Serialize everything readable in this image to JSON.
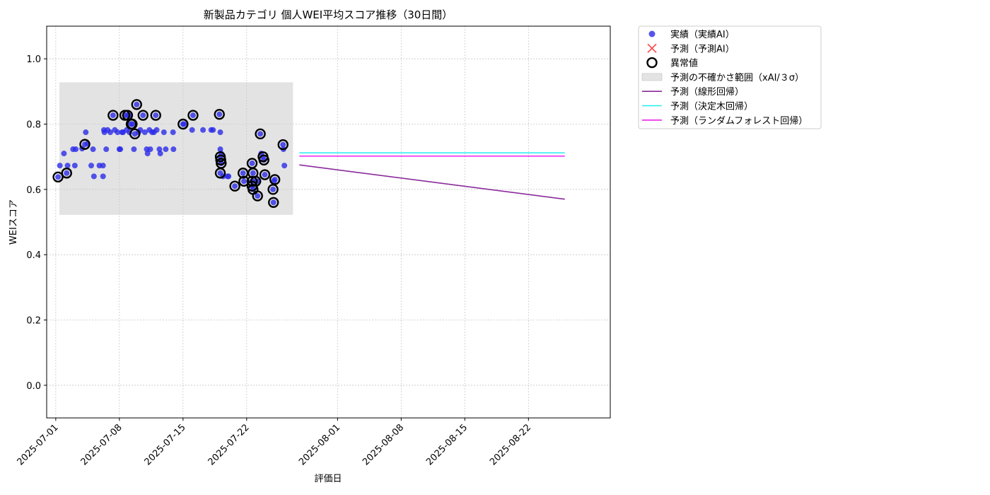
{
  "chart_data": {
    "type": "scatter",
    "title": "新製品カテゴリ 個人WEI平均スコア推移（30日間）",
    "xlabel": "評価日",
    "ylabel": "WEIスコア",
    "ylim": [
      -0.1,
      1.1
    ],
    "yticks": [
      "0.0",
      "0.2",
      "0.4",
      "0.6",
      "0.8",
      "1.0"
    ],
    "xlim": [
      "2025-06-30",
      "2025-08-31"
    ],
    "xticks": [
      "2025-07-01",
      "2025-07-08",
      "2025-07-15",
      "2025-07-22",
      "2025-08-01",
      "2025-08-08",
      "2025-08-15",
      "2025-08-22"
    ],
    "grid": true,
    "legend_position": "outside-top-right",
    "colors": {
      "actual": "#2a2ae8",
      "forecast_x": "#ff4444",
      "anomaly": "#000000",
      "band": "#e3e3e3",
      "linear": "#8b2a9b",
      "tree": "#22eeee",
      "forest": "#ee22ee"
    },
    "uncertainty_band": {
      "x_start": 0.4,
      "x_end": 26.1,
      "y_low": 0.522,
      "y_high": 0.928
    },
    "actual_points": [
      [
        0.25,
        0.638
      ],
      [
        0.45,
        0.673
      ],
      [
        0.9,
        0.71
      ],
      [
        1.2,
        0.65
      ],
      [
        1.3,
        0.673
      ],
      [
        1.9,
        0.723
      ],
      [
        2.1,
        0.673
      ],
      [
        2.2,
        0.723
      ],
      [
        2.9,
        0.725
      ],
      [
        3.2,
        0.738
      ],
      [
        3.3,
        0.775
      ],
      [
        3.5,
        0.74
      ],
      [
        3.9,
        0.673
      ],
      [
        4.1,
        0.723
      ],
      [
        4.2,
        0.64
      ],
      [
        4.8,
        0.673
      ],
      [
        5.2,
        0.673
      ],
      [
        5.2,
        0.64
      ],
      [
        5.3,
        0.782
      ],
      [
        5.35,
        0.775
      ],
      [
        5.55,
        0.723
      ],
      [
        5.7,
        0.782
      ],
      [
        6.0,
        0.775
      ],
      [
        6.3,
        0.827
      ],
      [
        6.5,
        0.782
      ],
      [
        6.8,
        0.775
      ],
      [
        7.0,
        0.723
      ],
      [
        7.1,
        0.723
      ],
      [
        7.3,
        0.775
      ],
      [
        7.4,
        0.775
      ],
      [
        7.6,
        0.827
      ],
      [
        7.8,
        0.782
      ],
      [
        7.9,
        0.827
      ],
      [
        8.05,
        0.827
      ],
      [
        8.1,
        0.775
      ],
      [
        8.3,
        0.8
      ],
      [
        8.4,
        0.8
      ],
      [
        8.6,
        0.723
      ],
      [
        8.7,
        0.77
      ],
      [
        8.9,
        0.86
      ],
      [
        9.1,
        0.775
      ],
      [
        9.3,
        0.782
      ],
      [
        9.6,
        0.827
      ],
      [
        9.8,
        0.775
      ],
      [
        10.0,
        0.723
      ],
      [
        10.1,
        0.71
      ],
      [
        10.3,
        0.782
      ],
      [
        10.4,
        0.723
      ],
      [
        10.6,
        0.775
      ],
      [
        10.8,
        0.775
      ],
      [
        11.0,
        0.827
      ],
      [
        11.1,
        0.782
      ],
      [
        11.4,
        0.723
      ],
      [
        11.5,
        0.71
      ],
      [
        11.9,
        0.775
      ],
      [
        12.1,
        0.723
      ],
      [
        12.9,
        0.775
      ],
      [
        12.95,
        0.723
      ],
      [
        14.0,
        0.8
      ],
      [
        14.1,
        0.8
      ],
      [
        15.0,
        0.782
      ],
      [
        15.1,
        0.827
      ],
      [
        16.2,
        0.782
      ],
      [
        17.1,
        0.782
      ],
      [
        17.3,
        0.782
      ],
      [
        18.0,
        0.83
      ],
      [
        18.1,
        0.775
      ],
      [
        18.1,
        0.723
      ],
      [
        18.2,
        0.71
      ],
      [
        18.1,
        0.7
      ],
      [
        18.15,
        0.69
      ],
      [
        18.2,
        0.68
      ],
      [
        18.1,
        0.65
      ],
      [
        18.4,
        0.64
      ],
      [
        18.9,
        0.64
      ],
      [
        19.0,
        0.64
      ],
      [
        19.7,
        0.61
      ],
      [
        20.6,
        0.65
      ],
      [
        20.7,
        0.625
      ],
      [
        21.6,
        0.68
      ],
      [
        21.7,
        0.65
      ],
      [
        21.6,
        0.625
      ],
      [
        21.6,
        0.61
      ],
      [
        21.7,
        0.6
      ],
      [
        22.0,
        0.625
      ],
      [
        22.2,
        0.58
      ],
      [
        22.3,
        0.625
      ],
      [
        22.5,
        0.77
      ],
      [
        22.6,
        0.71
      ],
      [
        22.8,
        0.7
      ],
      [
        22.9,
        0.69
      ],
      [
        23.0,
        0.645
      ],
      [
        23.9,
        0.6
      ],
      [
        23.95,
        0.56
      ],
      [
        24.0,
        0.625
      ],
      [
        24.1,
        0.63
      ],
      [
        25.0,
        0.737
      ],
      [
        25.05,
        0.723
      ],
      [
        25.15,
        0.673
      ]
    ],
    "anomaly_points": [
      [
        0.25,
        0.638
      ],
      [
        1.2,
        0.65
      ],
      [
        3.2,
        0.738
      ],
      [
        6.3,
        0.827
      ],
      [
        7.6,
        0.827
      ],
      [
        7.9,
        0.827
      ],
      [
        8.3,
        0.8
      ],
      [
        8.4,
        0.8
      ],
      [
        8.7,
        0.77
      ],
      [
        8.9,
        0.86
      ],
      [
        9.6,
        0.827
      ],
      [
        11.0,
        0.827
      ],
      [
        14.0,
        0.8
      ],
      [
        15.1,
        0.827
      ],
      [
        18.0,
        0.83
      ],
      [
        18.1,
        0.7
      ],
      [
        18.15,
        0.69
      ],
      [
        18.2,
        0.68
      ],
      [
        18.1,
        0.65
      ],
      [
        19.7,
        0.61
      ],
      [
        20.6,
        0.65
      ],
      [
        20.7,
        0.625
      ],
      [
        21.6,
        0.68
      ],
      [
        21.7,
        0.65
      ],
      [
        21.6,
        0.625
      ],
      [
        21.6,
        0.61
      ],
      [
        21.7,
        0.6
      ],
      [
        22.0,
        0.625
      ],
      [
        22.2,
        0.58
      ],
      [
        22.5,
        0.77
      ],
      [
        22.8,
        0.7
      ],
      [
        22.9,
        0.69
      ],
      [
        23.0,
        0.645
      ],
      [
        23.9,
        0.6
      ],
      [
        23.95,
        0.56
      ],
      [
        24.1,
        0.63
      ],
      [
        25.0,
        0.737
      ]
    ],
    "forecast_lines": [
      {
        "name": "linear",
        "x": [
          26.8,
          56.0
        ],
        "y": [
          0.675,
          0.57
        ]
      },
      {
        "name": "tree",
        "x": [
          26.8,
          56.0
        ],
        "y": [
          0.712,
          0.712
        ]
      },
      {
        "name": "forest",
        "x": [
          26.8,
          56.0
        ],
        "y": [
          0.702,
          0.702
        ]
      }
    ],
    "legend": [
      {
        "key": "actual",
        "label": "実績（実績AI）",
        "marker": "dot"
      },
      {
        "key": "forecast_x",
        "label": "予測（予測AI）",
        "marker": "x"
      },
      {
        "key": "anomaly",
        "label": "異常値",
        "marker": "ring"
      },
      {
        "key": "band",
        "label": "予測の不確かさ範囲（xAI/３σ）",
        "marker": "patch"
      },
      {
        "key": "linear",
        "label": "予測（線形回帰）",
        "marker": "line"
      },
      {
        "key": "tree",
        "label": "予測（決定木回帰）",
        "marker": "line"
      },
      {
        "key": "forest",
        "label": "予測（ランダムフォレスト回帰）",
        "marker": "line"
      }
    ]
  }
}
